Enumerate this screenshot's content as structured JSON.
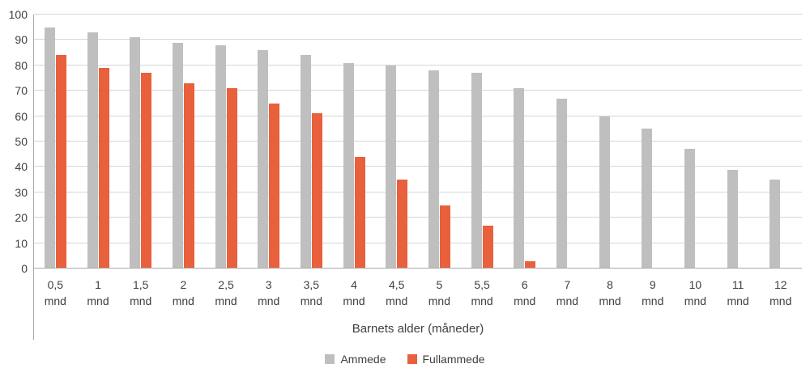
{
  "chart_data": {
    "type": "bar",
    "title": "",
    "xlabel": "Barnets alder (måneder)",
    "ylabel": "",
    "ylim": [
      0,
      100
    ],
    "ytick_step": 10,
    "grid": true,
    "legend_position": "bottom",
    "categories": [
      "0,5",
      "1",
      "1,5",
      "2",
      "2,5",
      "3",
      "3,5",
      "4",
      "4,5",
      "5",
      "5,5",
      "6",
      "7",
      "8",
      "9",
      "10",
      "11",
      "12"
    ],
    "category_unit": "mnd",
    "series": [
      {
        "name": "Ammede",
        "color": "#bfbfbf",
        "values": [
          95,
          93,
          91,
          89,
          88,
          86,
          84,
          81,
          80,
          78,
          77,
          71,
          67,
          60,
          55,
          47,
          39,
          35
        ]
      },
      {
        "name": "Fullammede",
        "color": "#e8603c",
        "values": [
          84,
          79,
          77,
          73,
          71,
          65,
          61,
          44,
          35,
          25,
          17,
          3,
          null,
          null,
          null,
          null,
          null,
          null
        ]
      }
    ]
  }
}
